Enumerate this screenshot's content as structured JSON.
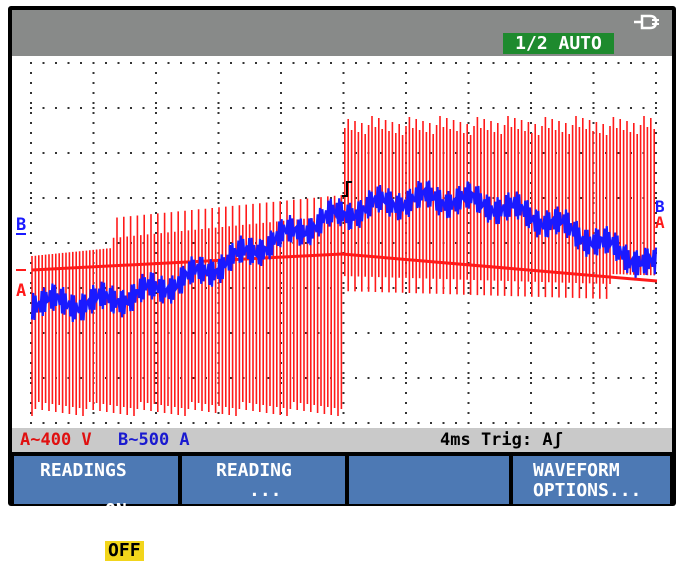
{
  "header": {
    "mode_label": "1/2 AUTO",
    "power_icon": "power-plug-icon"
  },
  "scope": {
    "channel_b_marker": "B",
    "channel_a_marker": "A",
    "right_b_marker": "B",
    "right_a_marker": "A",
    "trigger_marker_icon": "trigger-edge-icon",
    "colors": {
      "channel_a": "#ff1a1a",
      "channel_b": "#1a1aff",
      "grid": "#333333"
    }
  },
  "status": {
    "channel_a_range": "A~400 V",
    "channel_b_range": "B~500 A",
    "timebase_trigger": "4ms Trig: Aʃ"
  },
  "softkeys": {
    "readings": {
      "line1": "READINGS",
      "on": "ON",
      "off": "OFF"
    },
    "reading": {
      "line1": "READING",
      "line2": "..."
    },
    "blank": {
      "label": ""
    },
    "waveform": {
      "line1": "WAVEFORM",
      "line2": "OPTIONS..."
    }
  }
}
